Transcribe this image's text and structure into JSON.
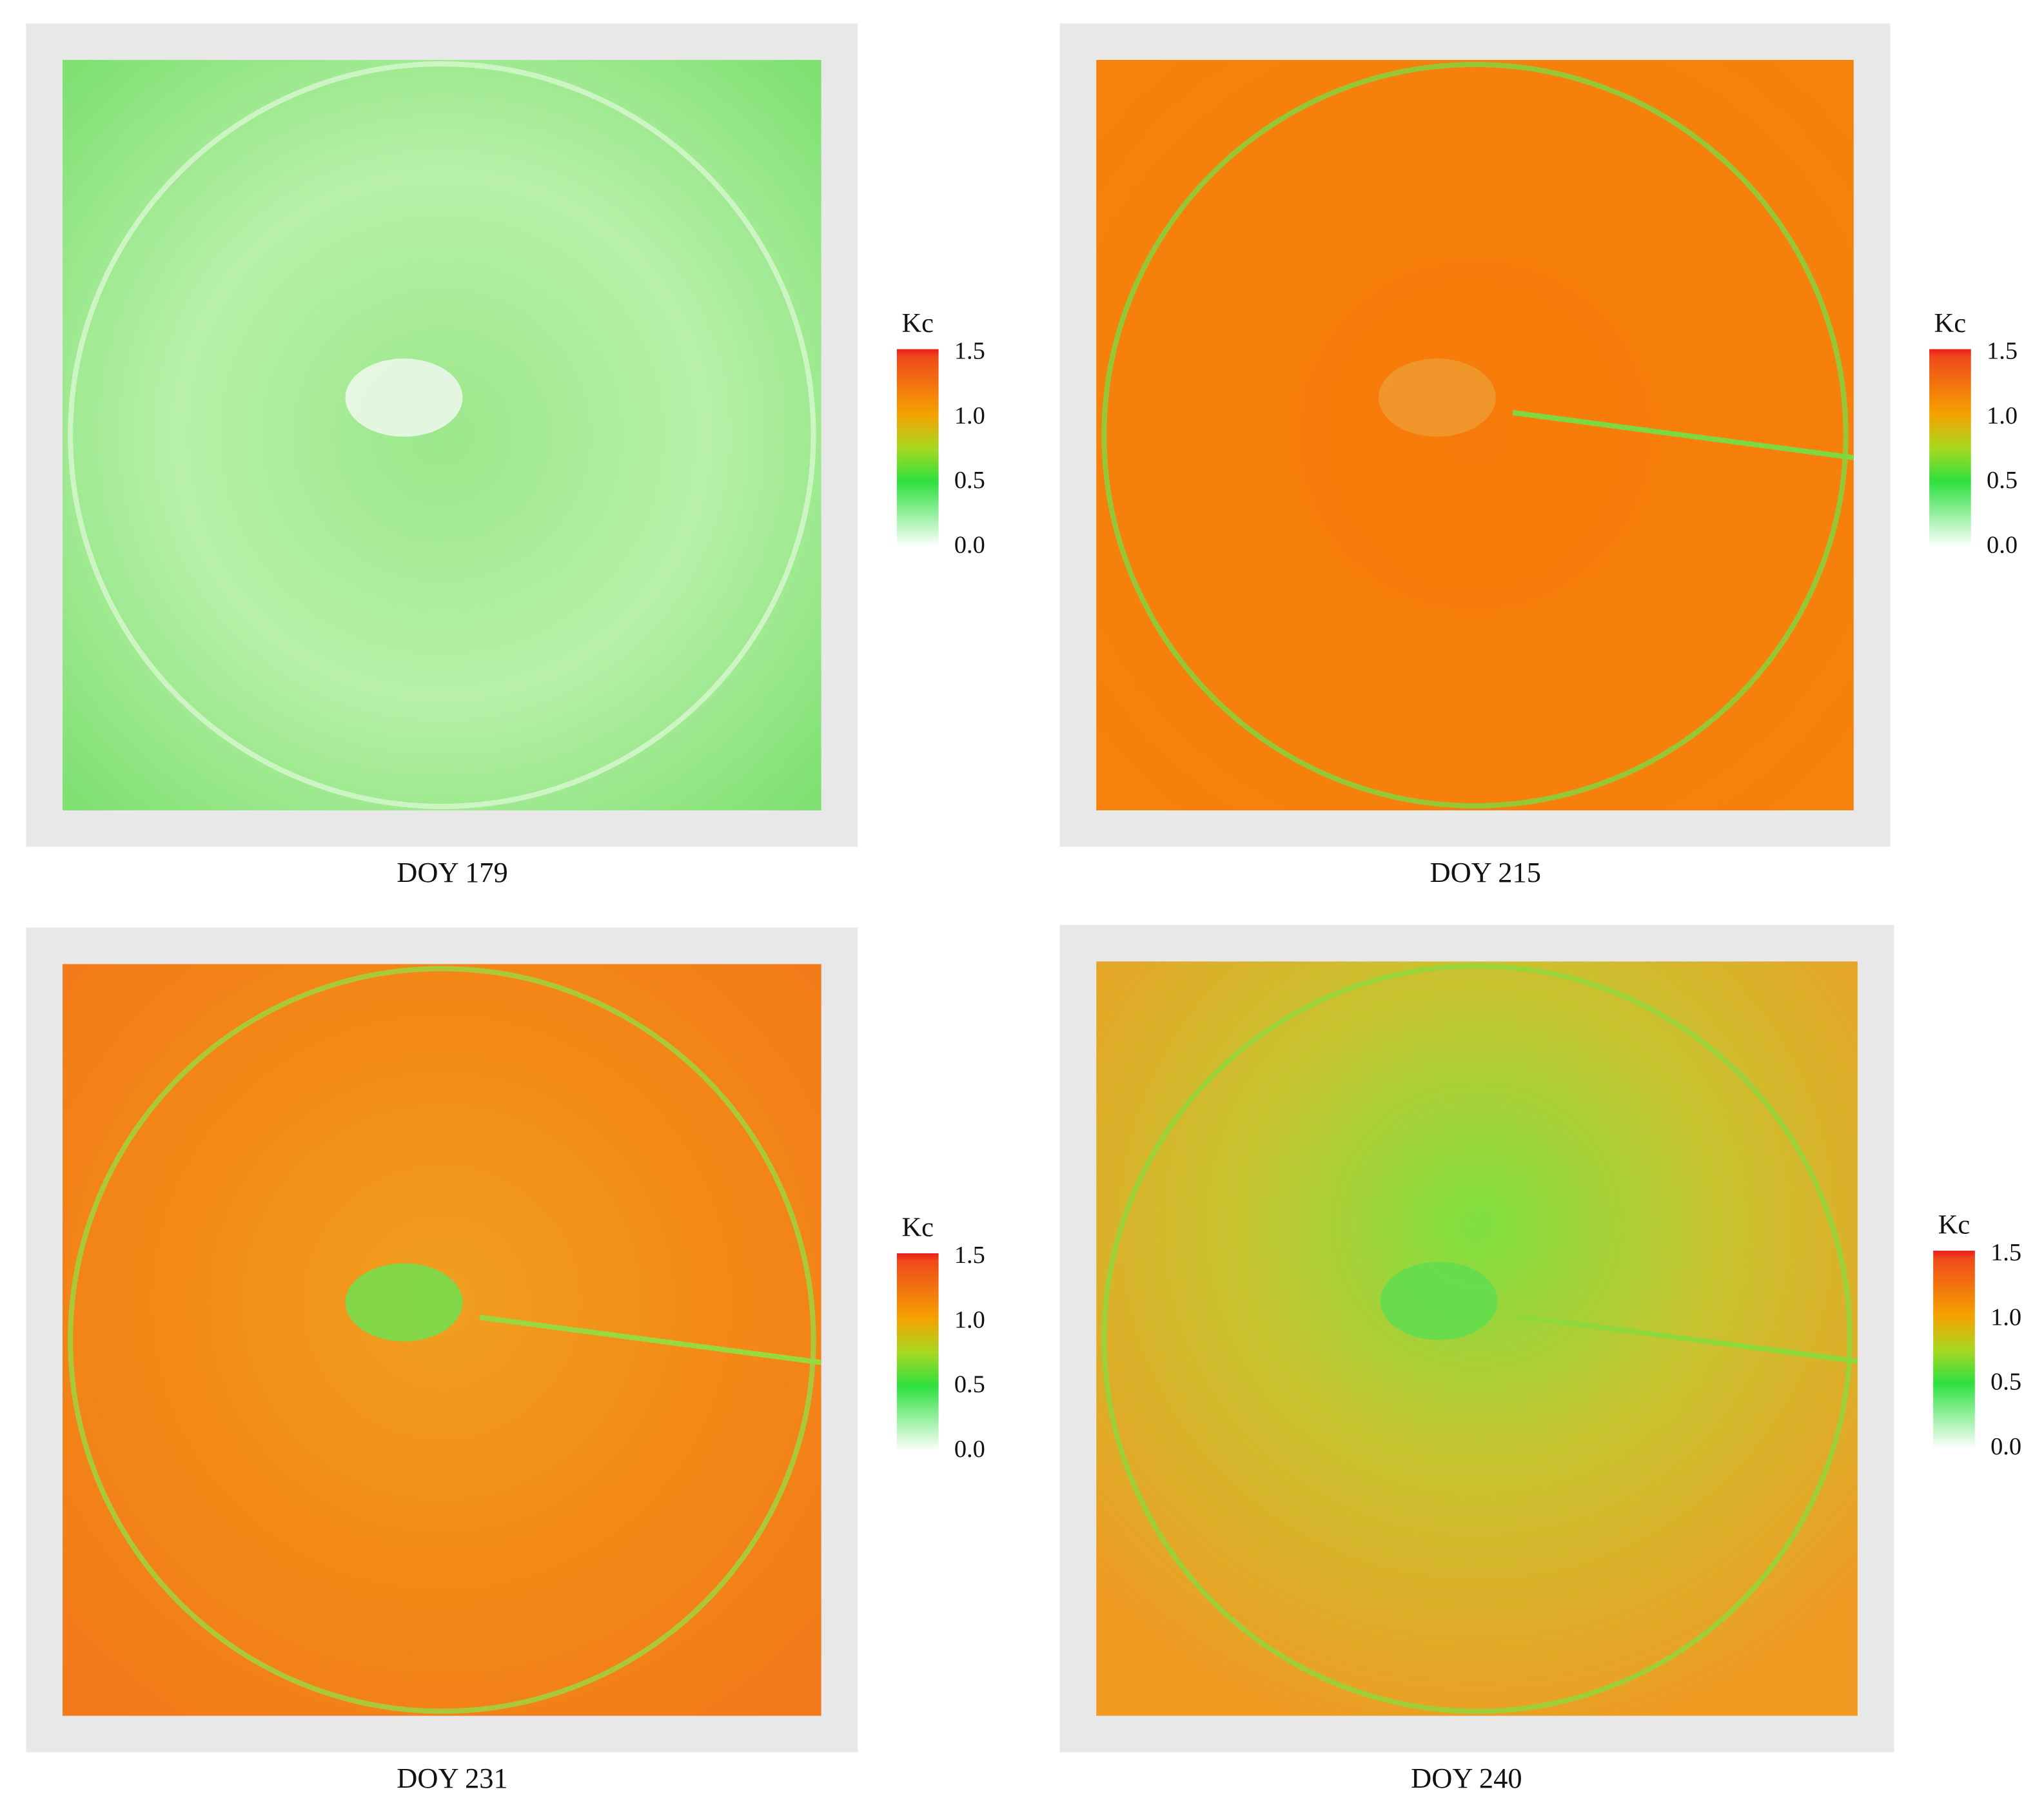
{
  "panels": [
    {
      "label": "DOY 179",
      "legend": {
        "title": "Kc",
        "ticks": [
          "1.5",
          "1.0",
          "0.5",
          "0.0"
        ]
      }
    },
    {
      "label": "DOY 215",
      "legend": {
        "title": "Kc",
        "ticks": [
          "1.5",
          "1.0",
          "0.5",
          "0.0"
        ]
      }
    },
    {
      "label": "DOY 231",
      "legend": {
        "title": "Kc",
        "ticks": [
          "1.5",
          "1.0",
          "0.5",
          "0.0"
        ]
      }
    },
    {
      "label": "DOY 240",
      "legend": {
        "title": "Kc",
        "ticks": [
          "1.5",
          "1.0",
          "0.5",
          "0.0"
        ]
      }
    }
  ]
}
